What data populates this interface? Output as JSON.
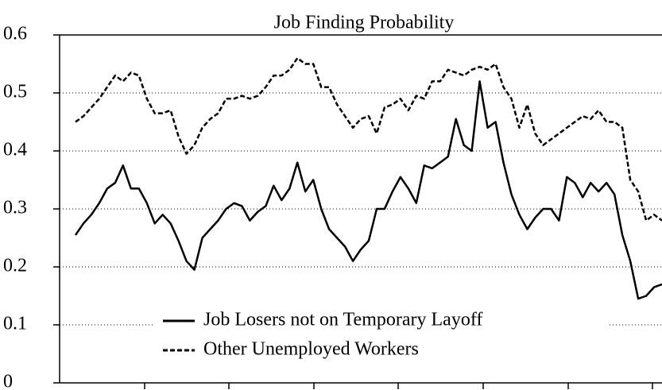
{
  "chart_data": {
    "type": "line",
    "title": "Job Finding Probability",
    "categories": [
      null,
      null,
      null,
      null,
      null,
      null,
      null,
      null,
      null,
      null,
      null,
      null,
      null,
      null,
      null,
      null,
      null,
      null,
      null,
      null,
      null,
      null,
      null,
      null,
      null,
      null,
      null,
      null,
      null,
      null,
      null,
      null,
      null,
      null,
      null,
      null,
      null,
      null,
      null,
      null,
      null,
      null,
      null,
      null,
      null,
      null,
      null,
      null,
      null,
      null,
      null,
      null,
      null,
      null,
      null,
      null,
      null,
      null,
      null,
      null,
      null,
      null,
      null,
      null,
      null,
      null,
      null,
      null,
      null,
      null,
      null,
      null,
      null,
      null,
      null
    ],
    "series": [
      {
        "name": "Job Losers not on Temporary Layoff",
        "color": "#000000",
        "style": "solid",
        "values": [
          0.255,
          0.275,
          0.29,
          0.31,
          0.335,
          0.345,
          0.375,
          0.335,
          0.335,
          0.31,
          0.275,
          0.29,
          0.275,
          0.245,
          0.21,
          0.195,
          0.25,
          0.265,
          0.28,
          0.3,
          0.31,
          0.305,
          0.28,
          0.295,
          0.305,
          0.34,
          0.315,
          0.335,
          0.38,
          0.33,
          0.35,
          0.3,
          0.265,
          0.25,
          0.235,
          0.21,
          0.23,
          0.245,
          0.3,
          0.3,
          0.33,
          0.355,
          0.335,
          0.31,
          0.375,
          0.37,
          0.38,
          0.39,
          0.455,
          0.41,
          0.4,
          0.52,
          0.44,
          0.45,
          0.38,
          0.325,
          0.29,
          0.265,
          0.285,
          0.3,
          0.3,
          0.28,
          0.355,
          0.345,
          0.32,
          0.345,
          0.33,
          0.345,
          0.325,
          0.255,
          0.21,
          0.145,
          0.15,
          0.165,
          0.17
        ]
      },
      {
        "name": "Other Unemployed Workers",
        "color": "#000000",
        "style": "dashed",
        "values": [
          0.45,
          0.46,
          0.475,
          0.49,
          0.51,
          0.53,
          0.52,
          0.535,
          0.53,
          0.49,
          0.465,
          0.465,
          0.47,
          0.425,
          0.395,
          0.41,
          0.44,
          0.455,
          0.465,
          0.49,
          0.49,
          0.495,
          0.49,
          0.495,
          0.51,
          0.53,
          0.53,
          0.54,
          0.56,
          0.55,
          0.55,
          0.51,
          0.51,
          0.48,
          0.46,
          0.44,
          0.455,
          0.46,
          0.43,
          0.475,
          0.48,
          0.49,
          0.47,
          0.495,
          0.49,
          0.52,
          0.52,
          0.54,
          0.535,
          0.53,
          0.54,
          0.545,
          0.54,
          0.55,
          0.51,
          0.49,
          0.44,
          0.48,
          0.43,
          0.41,
          0.42,
          0.43,
          0.44,
          0.45,
          0.46,
          0.455,
          0.47,
          0.45,
          0.45,
          0.44,
          0.35,
          0.33,
          0.28,
          0.29,
          0.28
        ]
      }
    ],
    "ylim": [
      0,
      0.6
    ],
    "yticks": [
      0,
      0.1,
      0.2,
      0.3,
      0.4,
      0.5,
      0.6
    ],
    "grid": true
  }
}
